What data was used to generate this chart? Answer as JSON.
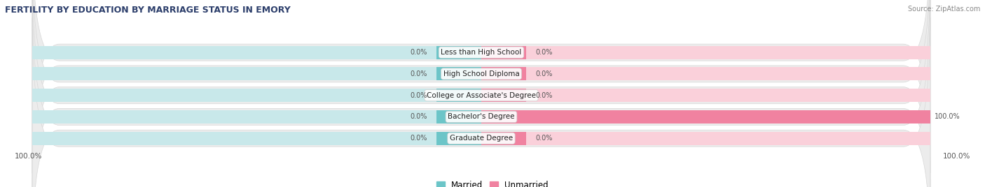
{
  "title": "FERTILITY BY EDUCATION BY MARRIAGE STATUS IN EMORY",
  "source": "Source: ZipAtlas.com",
  "categories": [
    "Less than High School",
    "High School Diploma",
    "College or Associate's Degree",
    "Bachelor's Degree",
    "Graduate Degree"
  ],
  "married_vals": [
    0.0,
    0.0,
    0.0,
    0.0,
    0.0
  ],
  "unmarried_vals": [
    0.0,
    0.0,
    0.0,
    100.0,
    0.0
  ],
  "married_color": "#6CC5C8",
  "unmarried_color": "#F082A0",
  "married_bg_color": "#C8E8EA",
  "unmarried_bg_color": "#FAD0DA",
  "row_bg_color": "#ECECEC",
  "row_border_color": "#D8D8D8",
  "legend_married": "Married",
  "legend_unmarried": "Unmarried",
  "background_color": "#FFFFFF",
  "title_color": "#2C3E6B",
  "source_color": "#888888",
  "label_color": "#555555"
}
